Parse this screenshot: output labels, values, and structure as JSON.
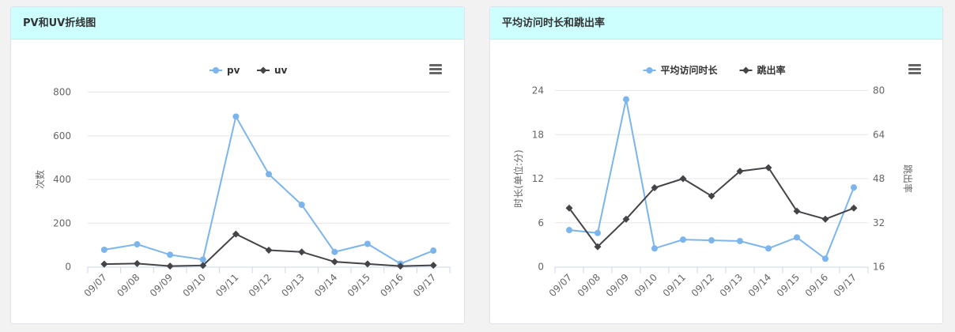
{
  "colors": {
    "header_bg": "#ccfffe",
    "pv": "#7cb5ec",
    "uv": "#434348",
    "grid": "#e6e6e6"
  },
  "panels": [
    {
      "title": "PV和UV折线图",
      "menu_icon": "hamburger-menu-icon"
    },
    {
      "title": "平均访问时长和跳出率",
      "menu_icon": "hamburger-menu-icon"
    }
  ],
  "chart_data": [
    {
      "type": "line",
      "categories": [
        "09/07",
        "09/08",
        "09/09",
        "09/10",
        "09/11",
        "09/12",
        "09/13",
        "09/14",
        "09/15",
        "09/16",
        "09/17"
      ],
      "ylabel": "次数",
      "ylim": [
        0,
        800
      ],
      "yticks": [
        "0",
        "200",
        "400",
        "600",
        "800"
      ],
      "grid": true,
      "legend": "top-center",
      "series": [
        {
          "name": "pv",
          "marker": "circle",
          "color": "#7cb5ec",
          "values": [
            78,
            103,
            55,
            33,
            688,
            424,
            284,
            68,
            105,
            14,
            74
          ]
        },
        {
          "name": "uv",
          "marker": "diamond",
          "color": "#434348",
          "values": [
            12,
            15,
            3,
            6,
            150,
            76,
            68,
            23,
            13,
            3,
            7
          ]
        }
      ]
    },
    {
      "type": "line",
      "categories": [
        "09/07",
        "09/08",
        "09/09",
        "09/10",
        "09/11",
        "09/12",
        "09/13",
        "09/14",
        "09/15",
        "09/16",
        "09/17"
      ],
      "ylabel_left": "时长(单位:分)",
      "ylabel_right": "跳出率",
      "ylim_left": [
        0,
        24
      ],
      "ylim_right": [
        16,
        80
      ],
      "yticks_left": [
        "0",
        "6",
        "12",
        "18",
        "24"
      ],
      "yticks_right": [
        "16",
        "32",
        "48",
        "64",
        "80"
      ],
      "grid": true,
      "legend": "top-center",
      "series": [
        {
          "name": "平均访问时长",
          "axis": "left",
          "marker": "circle",
          "color": "#7cb5ec",
          "values": [
            5.0,
            4.6,
            22.8,
            2.5,
            3.7,
            3.6,
            3.5,
            2.5,
            4.0,
            1.1,
            10.8
          ]
        },
        {
          "name": "跳出率",
          "axis": "right",
          "marker": "diamond",
          "color": "#434348",
          "values": [
            37.3,
            23.3,
            33.3,
            44.7,
            48.0,
            41.7,
            50.7,
            52.0,
            36.2,
            33.3,
            37.3
          ]
        }
      ]
    }
  ]
}
